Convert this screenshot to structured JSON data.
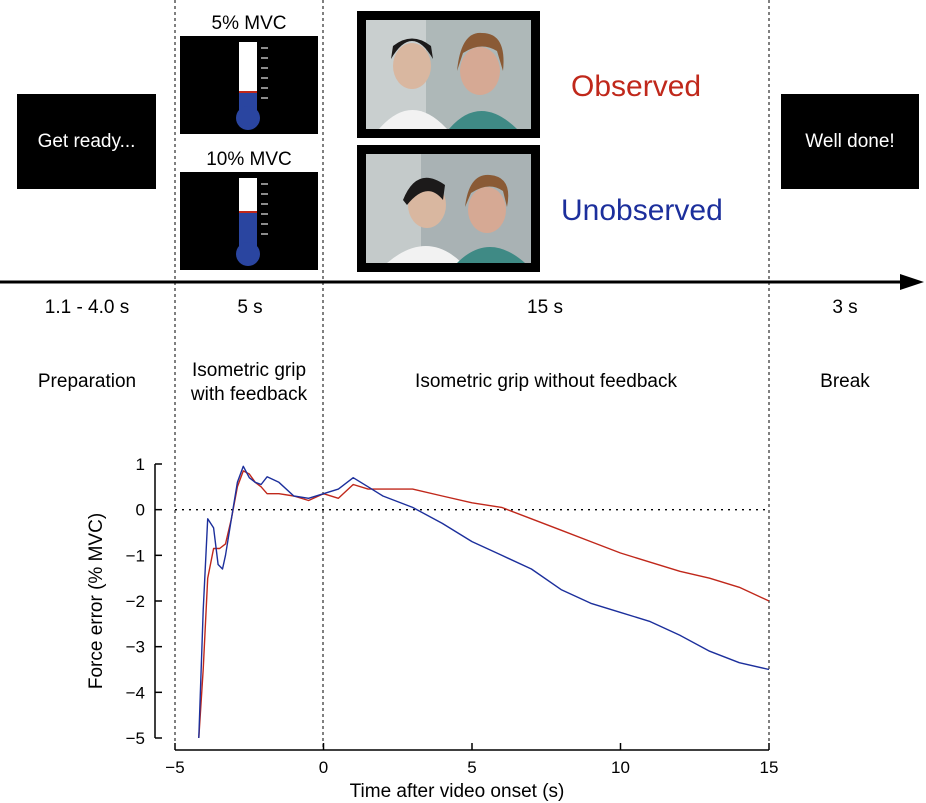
{
  "boxes": {
    "get_ready": "Get ready...",
    "well_done": "Well done!"
  },
  "thermometers": [
    {
      "label": "5% MVC",
      "level": 0.05
    },
    {
      "label": "10% MVC",
      "level": 0.1
    }
  ],
  "conditions": {
    "observed": "Observed",
    "unobserved": "Unobserved",
    "observed_color": "#c0281b",
    "unobserved_color": "#1c2f9c"
  },
  "timeline": {
    "durations": [
      "1.1 - 4.0 s",
      "5 s",
      "15 s",
      "3 s"
    ],
    "phases": {
      "preparation": "Preparation",
      "grip_feedback_line1": "Isometric grip",
      "grip_feedback_line2": "with feedback",
      "grip_no_feedback": "Isometric grip without feedback",
      "break": "Break"
    }
  },
  "chart_data": {
    "type": "line",
    "xlabel": "Time after video onset (s)",
    "ylabel": "Force error (% MVC)",
    "xlim": [
      -5,
      15
    ],
    "ylim": [
      -5,
      1
    ],
    "xticks": [
      -5,
      0,
      5,
      10,
      15
    ],
    "yticks": [
      1,
      0,
      -1,
      -2,
      -3,
      -4,
      -5
    ],
    "series": [
      {
        "key": "observed",
        "color": "#c0281b",
        "x": [
          -4.2,
          -4.05,
          -3.9,
          -3.7,
          -3.5,
          -3.3,
          -3.1,
          -2.9,
          -2.7,
          -2.5,
          -2.3,
          -2.1,
          -1.9,
          -1.5,
          -1,
          -0.5,
          0,
          0.5,
          1,
          1.5,
          2,
          3,
          4,
          5,
          6,
          7,
          8,
          9,
          10,
          11,
          12,
          13,
          14,
          15
        ],
        "y": [
          -5,
          -3.5,
          -1.5,
          -0.85,
          -0.85,
          -0.75,
          -0.2,
          0.5,
          0.85,
          0.78,
          0.6,
          0.5,
          0.35,
          0.35,
          0.3,
          0.2,
          0.35,
          0.25,
          0.55,
          0.45,
          0.45,
          0.45,
          0.3,
          0.15,
          0.05,
          -0.2,
          -0.45,
          -0.7,
          -0.95,
          -1.15,
          -1.35,
          -1.5,
          -1.7,
          -2.0
        ]
      },
      {
        "key": "unobserved",
        "color": "#1c2f9c",
        "x": [
          -4.2,
          -4.05,
          -3.9,
          -3.7,
          -3.55,
          -3.4,
          -3.3,
          -3.1,
          -2.9,
          -2.7,
          -2.5,
          -2.3,
          -2.1,
          -1.9,
          -1.5,
          -1,
          -0.5,
          0,
          0.5,
          1,
          1.5,
          2,
          3,
          4,
          5,
          6,
          7,
          8,
          9,
          10,
          11,
          12,
          13,
          14,
          15
        ],
        "y": [
          -5,
          -2.2,
          -0.2,
          -0.4,
          -1.2,
          -1.3,
          -1.0,
          -0.2,
          0.6,
          0.95,
          0.7,
          0.6,
          0.55,
          0.72,
          0.6,
          0.3,
          0.25,
          0.35,
          0.45,
          0.7,
          0.5,
          0.3,
          0.05,
          -0.3,
          -0.7,
          -1.0,
          -1.3,
          -1.75,
          -2.05,
          -2.25,
          -2.45,
          -2.75,
          -3.1,
          -3.35,
          -3.5
        ]
      }
    ]
  }
}
